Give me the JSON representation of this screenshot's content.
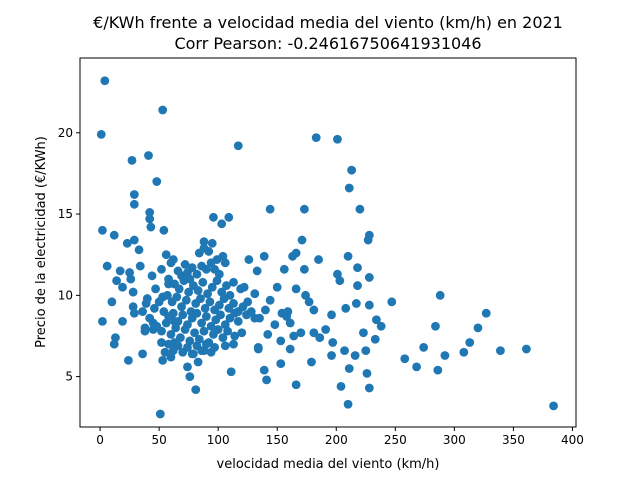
{
  "chart_data": {
    "type": "scatter",
    "title": "€/KWh frente a velocidad media del viento (km/h) en 2021",
    "subtitle": "Corr Pearson: -0.24616750641931046",
    "xlabel": "velocidad media del viento (km/h)",
    "ylabel": "Precio de la electricidad (€/KWh)",
    "xlim": [
      -17,
      403
    ],
    "ylim": [
      1.9,
      24.6
    ],
    "xticks": [
      0,
      50,
      100,
      150,
      200,
      250,
      300,
      350,
      400
    ],
    "yticks": [
      5,
      10,
      15,
      20
    ],
    "grid": false,
    "marker_color": "#1f77b4",
    "points": [
      [
        4,
        23.2
      ],
      [
        1,
        19.9
      ],
      [
        53,
        21.4
      ],
      [
        117,
        19.2
      ],
      [
        183,
        19.7
      ],
      [
        201,
        19.6
      ],
      [
        27,
        18.3
      ],
      [
        41,
        18.6
      ],
      [
        213,
        17.7
      ],
      [
        211,
        16.6
      ],
      [
        48,
        17.0
      ],
      [
        29,
        16.2
      ],
      [
        29,
        15.6
      ],
      [
        42,
        15.1
      ],
      [
        220,
        15.3
      ],
      [
        144,
        15.3
      ],
      [
        173,
        15.3
      ],
      [
        42,
        14.7
      ],
      [
        2,
        14.0
      ],
      [
        43,
        14.2
      ],
      [
        54,
        14.0
      ],
      [
        96,
        14.8
      ],
      [
        103,
        14.4
      ],
      [
        109,
        14.8
      ],
      [
        12,
        13.7
      ],
      [
        29,
        13.4
      ],
      [
        23,
        13.2
      ],
      [
        88,
        13.3
      ],
      [
        95,
        13.2
      ],
      [
        171,
        13.4
      ],
      [
        228,
        13.7
      ],
      [
        227,
        13.4
      ],
      [
        33,
        12.8
      ],
      [
        56,
        12.5
      ],
      [
        62,
        12.2
      ],
      [
        99,
        12.2
      ],
      [
        104,
        12.4
      ],
      [
        126,
        12.2
      ],
      [
        139,
        12.4
      ],
      [
        163,
        12.4
      ],
      [
        166,
        12.6
      ],
      [
        185,
        12.2
      ],
      [
        210,
        12.4
      ],
      [
        6,
        11.8
      ],
      [
        34,
        11.8
      ],
      [
        52,
        11.6
      ],
      [
        72,
        11.9
      ],
      [
        133,
        11.5
      ],
      [
        156,
        11.6
      ],
      [
        173,
        11.6
      ],
      [
        201,
        11.3
      ],
      [
        218,
        11.7
      ],
      [
        228,
        11.1
      ],
      [
        17,
        11.5
      ],
      [
        25,
        11.4
      ],
      [
        26,
        11.0
      ],
      [
        14,
        10.9
      ],
      [
        19,
        10.5
      ],
      [
        58,
        10.7
      ],
      [
        76,
        11.0
      ],
      [
        113,
        10.8
      ],
      [
        122,
        10.5
      ],
      [
        150,
        10.5
      ],
      [
        166,
        10.4
      ],
      [
        203,
        10.9
      ],
      [
        218,
        10.6
      ],
      [
        10,
        9.6
      ],
      [
        28,
        10.2
      ],
      [
        28,
        9.3
      ],
      [
        39,
        9.5
      ],
      [
        53,
        9.9
      ],
      [
        110,
        10.0
      ],
      [
        131,
        10.1
      ],
      [
        144,
        9.7
      ],
      [
        174,
        10.0
      ],
      [
        177,
        9.6
      ],
      [
        217,
        9.5
      ],
      [
        247,
        9.6
      ],
      [
        288,
        10.0
      ],
      [
        2,
        8.4
      ],
      [
        19,
        8.4
      ],
      [
        29,
        8.9
      ],
      [
        38,
        8.0
      ],
      [
        45,
        8.3
      ],
      [
        63,
        8.4
      ],
      [
        117,
        8.4
      ],
      [
        135,
        8.6
      ],
      [
        154,
        8.9
      ],
      [
        161,
        8.3
      ],
      [
        181,
        9.1
      ],
      [
        208,
        9.2
      ],
      [
        228,
        9.4
      ],
      [
        234,
        8.5
      ],
      [
        238,
        8.1
      ],
      [
        13,
        7.4
      ],
      [
        12,
        7.0
      ],
      [
        38,
        7.8
      ],
      [
        45,
        7.9
      ],
      [
        52,
        7.1
      ],
      [
        63,
        7.1
      ],
      [
        113,
        7.0
      ],
      [
        134,
        6.7
      ],
      [
        142,
        7.6
      ],
      [
        153,
        7.2
      ],
      [
        164,
        7.5
      ],
      [
        181,
        7.7
      ],
      [
        197,
        7.1
      ],
      [
        223,
        7.7
      ],
      [
        233,
        7.3
      ],
      [
        274,
        6.8
      ],
      [
        284,
        8.1
      ],
      [
        313,
        7.1
      ],
      [
        320,
        8.0
      ],
      [
        327,
        8.9
      ],
      [
        24,
        6.0
      ],
      [
        36,
        6.4
      ],
      [
        53,
        6.0
      ],
      [
        60,
        6.2
      ],
      [
        79,
        6.4
      ],
      [
        88,
        6.6
      ],
      [
        134,
        6.8
      ],
      [
        161,
        6.7
      ],
      [
        196,
        6.3
      ],
      [
        207,
        6.6
      ],
      [
        216,
        6.3
      ],
      [
        225,
        6.6
      ],
      [
        258,
        6.1
      ],
      [
        268,
        5.6
      ],
      [
        292,
        6.3
      ],
      [
        308,
        6.5
      ],
      [
        339,
        6.6
      ],
      [
        361,
        6.7
      ],
      [
        74,
        5.6
      ],
      [
        83,
        5.9
      ],
      [
        111,
        5.3
      ],
      [
        139,
        5.4
      ],
      [
        153,
        5.8
      ],
      [
        179,
        5.9
      ],
      [
        211,
        5.5
      ],
      [
        226,
        5.2
      ],
      [
        286,
        5.4
      ],
      [
        76,
        5.0
      ],
      [
        141,
        4.8
      ],
      [
        166,
        4.5
      ],
      [
        204,
        4.4
      ],
      [
        228,
        4.3
      ],
      [
        81,
        4.2
      ],
      [
        210,
        3.3
      ],
      [
        384,
        3.2
      ],
      [
        51,
        2.7
      ],
      [
        60,
        12.0
      ],
      [
        66,
        11.5
      ],
      [
        69,
        11.2
      ],
      [
        74,
        11.4
      ],
      [
        78,
        11.7
      ],
      [
        82,
        11.3
      ],
      [
        86,
        11.8
      ],
      [
        90,
        11.6
      ],
      [
        94,
        12.0
      ],
      [
        84,
        12.6
      ],
      [
        88,
        12.9
      ],
      [
        92,
        12.7
      ],
      [
        97,
        11.6
      ],
      [
        101,
        11.3
      ],
      [
        106,
        12.0
      ],
      [
        58,
        11.0
      ],
      [
        63,
        10.7
      ],
      [
        67,
        10.4
      ],
      [
        71,
        10.9
      ],
      [
        75,
        10.2
      ],
      [
        79,
        10.6
      ],
      [
        83,
        10.3
      ],
      [
        87,
        10.8
      ],
      [
        91,
        10.1
      ],
      [
        95,
        10.5
      ],
      [
        99,
        10.9
      ],
      [
        103,
        10.2
      ],
      [
        107,
        10.6
      ],
      [
        57,
        10.0
      ],
      [
        61,
        9.6
      ],
      [
        65,
        9.9
      ],
      [
        69,
        9.3
      ],
      [
        73,
        9.7
      ],
      [
        77,
        9.0
      ],
      [
        81,
        9.5
      ],
      [
        85,
        9.8
      ],
      [
        89,
        9.2
      ],
      [
        93,
        9.6
      ],
      [
        97,
        9.1
      ],
      [
        101,
        9.4
      ],
      [
        105,
        9.8
      ],
      [
        109,
        9.2
      ],
      [
        113,
        9.5
      ],
      [
        117,
        9.0
      ],
      [
        121,
        9.3
      ],
      [
        46,
        9.2
      ],
      [
        50,
        9.6
      ],
      [
        54,
        9.0
      ],
      [
        58,
        8.7
      ],
      [
        62,
        8.9
      ],
      [
        66,
        8.4
      ],
      [
        70,
        8.8
      ],
      [
        74,
        8.2
      ],
      [
        78,
        8.6
      ],
      [
        82,
        8.9
      ],
      [
        86,
        8.3
      ],
      [
        90,
        8.7
      ],
      [
        94,
        8.1
      ],
      [
        98,
        8.5
      ],
      [
        102,
        8.8
      ],
      [
        106,
        8.2
      ],
      [
        110,
        8.6
      ],
      [
        114,
        8.9
      ],
      [
        124,
        8.8
      ],
      [
        128,
        9.0
      ],
      [
        48,
        8.1
      ],
      [
        52,
        7.8
      ],
      [
        56,
        8.3
      ],
      [
        60,
        7.6
      ],
      [
        64,
        8.0
      ],
      [
        68,
        7.4
      ],
      [
        72,
        7.9
      ],
      [
        76,
        7.2
      ],
      [
        80,
        7.7
      ],
      [
        84,
        7.3
      ],
      [
        88,
        7.8
      ],
      [
        92,
        7.1
      ],
      [
        96,
        7.6
      ],
      [
        100,
        7.9
      ],
      [
        104,
        7.4
      ],
      [
        108,
        7.8
      ],
      [
        114,
        7.5
      ],
      [
        120,
        7.7
      ],
      [
        58,
        7.0
      ],
      [
        62,
        6.6
      ],
      [
        66,
        6.9
      ],
      [
        70,
        6.5
      ],
      [
        74,
        6.8
      ],
      [
        78,
        6.4
      ],
      [
        82,
        6.9
      ],
      [
        86,
        6.6
      ],
      [
        90,
        7.0
      ],
      [
        94,
        6.5
      ],
      [
        55,
        6.5
      ],
      [
        97,
        6.8
      ],
      [
        106,
        6.9
      ],
      [
        40,
        9.8
      ],
      [
        42,
        8.6
      ],
      [
        44,
        11.2
      ],
      [
        47,
        10.4
      ],
      [
        36,
        9.0
      ],
      [
        119,
        10.4
      ],
      [
        125,
        9.6
      ],
      [
        131,
        8.6
      ],
      [
        148,
        8.2
      ],
      [
        158,
        8.7
      ],
      [
        170,
        7.7
      ],
      [
        186,
        7.4
      ],
      [
        191,
        7.9
      ],
      [
        196,
        8.8
      ],
      [
        140,
        9.1
      ],
      [
        159,
        9.0
      ]
    ]
  }
}
